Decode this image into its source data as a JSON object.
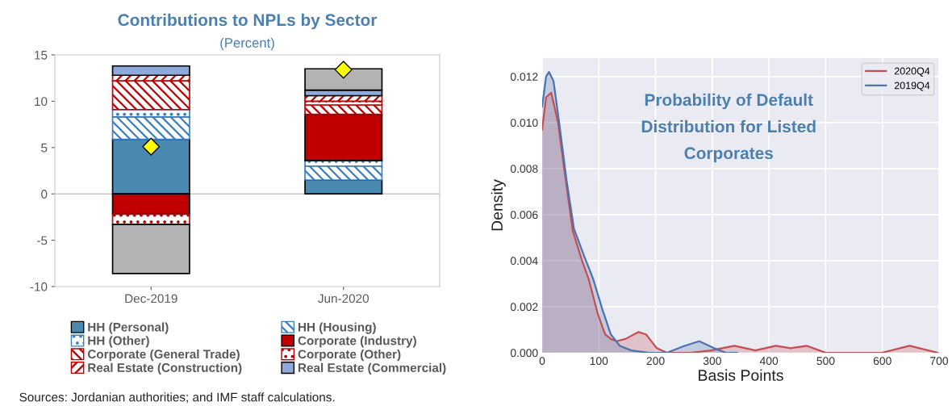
{
  "chart_data": [
    {
      "type": "bar",
      "title": "Contributions to NPLs by Sector",
      "subtitle": "(Percent)",
      "categories": [
        "Dec-2019",
        "Jun-2020"
      ],
      "stacked": true,
      "ylim": [
        -10,
        15
      ],
      "yticks": [
        -10,
        -5,
        0,
        5,
        10,
        15
      ],
      "legend": "bottom",
      "ref_lines": [
        {
          "axis": "y",
          "value": 0,
          "color": "#c8c8c8"
        }
      ],
      "annotations": [
        "Sources: Jordanian authorities; and IMF staff calculations."
      ],
      "series": [
        {
          "name": "HH (Personal)",
          "color": "#4a8ab0",
          "values": [
            5.9,
            1.5
          ]
        },
        {
          "name": "HH (Housing)",
          "color": "#3a7fc0",
          "values": [
            2.4,
            1.5
          ]
        },
        {
          "name": "HH (Other)",
          "color": "#3a7fc0",
          "values": [
            0.8,
            0.6
          ]
        },
        {
          "name": "Corporate (Industry)",
          "color": "#c00000",
          "values": [
            -2.2,
            5.0
          ]
        },
        {
          "name": "Corporate (General Trade)",
          "color": "#c00000",
          "values": [
            3.1,
            1.0
          ]
        },
        {
          "name": "Corporate (Other)",
          "color": "#c00000",
          "values": [
            -1.1,
            0.4
          ]
        },
        {
          "name": "Real Estate (Construction)",
          "color": "#c00000",
          "values": [
            0.6,
            0.6
          ]
        },
        {
          "name": "Real Estate (Commercial)",
          "color": "#8eaadb",
          "values": [
            1.0,
            0.6
          ]
        },
        {
          "color": "#b3b3b3",
          "values": [
            -5.3,
            2.3
          ]
        },
        {
          "type": "scatter",
          "color": "#ffff00",
          "marker": "diamond",
          "x": [
            "Dec-2019",
            "Jun-2020"
          ],
          "values": [
            5.1,
            13.4
          ]
        }
      ]
    },
    {
      "type": "area",
      "title": "Probability of Default\nDistribution for Listed\nCorporates",
      "xlabel": "Basis Points",
      "ylabel": "Density",
      "xlim": [
        0,
        700
      ],
      "xticks": [
        0,
        100,
        200,
        300,
        400,
        500,
        600,
        700
      ],
      "ylim": [
        0,
        0.0128
      ],
      "yticks": [
        {
          "value": 0,
          "label": "0.000"
        },
        {
          "value": 0.002,
          "label": "0.002"
        },
        {
          "value": 0.004,
          "label": "0.004"
        },
        {
          "value": 0.006,
          "label": "0.006"
        },
        {
          "value": 0.008,
          "label": "0.008"
        },
        {
          "value": 0.01,
          "label": "0.010"
        },
        {
          "value": 0.012,
          "label": "0.012"
        }
      ],
      "grid": true,
      "legend": "top right",
      "series": [
        {
          "name": "2020Q4",
          "color": "#c44e52",
          "x": [
            0,
            7,
            16,
            28,
            41,
            54,
            69,
            82,
            98,
            111,
            121,
            131,
            147,
            170,
            183,
            202,
            220,
            261,
            298,
            339,
            376,
            412,
            438,
            467,
            500,
            531,
            599,
            648,
            698
          ],
          "values": [
            0.0097,
            0.0111,
            0.0113,
            0.01,
            0.0076,
            0.0053,
            0.0041,
            0.0032,
            0.0017,
            0.0008,
            0.0006,
            0.0005,
            0.0006,
            0.0009,
            0.0008,
            0.0002,
            0.0,
            0.0,
            0.0001,
            0.0003,
            0.0001,
            0.0003,
            0.0002,
            0.0003,
            0.0,
            0,
            0.0,
            0.0003,
            0
          ]
        },
        {
          "name": "2019Q4",
          "color": "#4c72b0",
          "x": [
            0,
            7,
            12,
            20,
            30,
            43,
            56,
            74,
            90,
            106,
            121,
            137,
            157,
            189,
            220,
            251,
            277,
            303,
            324,
            344
          ],
          "values": [
            0.0107,
            0.012,
            0.0122,
            0.0118,
            0.01,
            0.0075,
            0.0054,
            0.0042,
            0.0032,
            0.0019,
            0.0008,
            0.0003,
            0.0001,
            0,
            0.0,
            0.0003,
            0.0005,
            0.0002,
            0.0,
            0.0
          ]
        }
      ]
    }
  ]
}
